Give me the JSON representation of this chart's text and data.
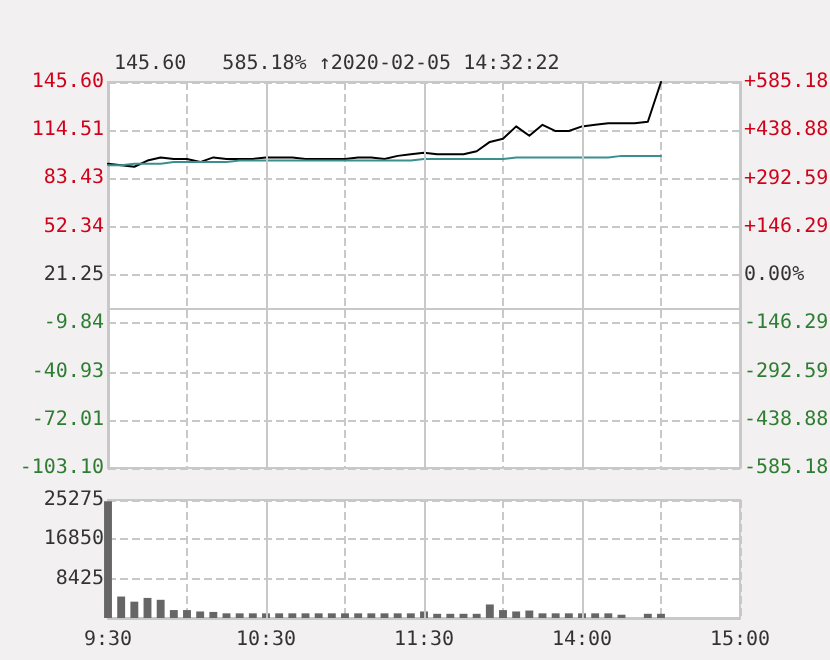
{
  "chart_data": [
    {
      "type": "line",
      "title": "145.60   585.18% ↑2020-02-05 14:32:22",
      "categories": [
        null,
        null,
        null,
        null,
        null,
        null,
        null,
        null,
        null,
        null,
        null,
        null,
        null,
        null,
        null,
        null,
        null,
        null,
        null,
        null,
        null,
        null,
        null,
        null,
        null,
        null,
        null,
        null,
        null,
        null,
        null,
        null,
        null,
        null,
        null,
        null,
        null,
        null,
        null,
        null,
        null,
        null,
        null,
        null,
        null,
        null,
        null,
        null,
        null
      ],
      "series": [
        {
          "color": "#000000",
          "values": [
            93,
            92,
            91,
            95,
            97,
            96,
            96,
            94,
            97,
            96,
            96,
            96,
            97,
            97,
            97,
            96,
            96,
            96,
            96,
            97,
            97,
            96,
            98,
            99,
            100,
            99,
            99,
            99,
            101,
            107,
            109,
            117,
            111,
            118,
            114,
            114,
            117,
            118,
            119,
            119,
            119,
            120,
            145.6,
            null,
            null,
            null,
            null,
            null,
            null
          ]
        },
        {
          "color": "#3a8f8f",
          "values": [
            92,
            92,
            93,
            93,
            93,
            94,
            94,
            94,
            94,
            94,
            95,
            95,
            95,
            95,
            95,
            95,
            95,
            95,
            95,
            95,
            95,
            95,
            95,
            95,
            96,
            96,
            96,
            96,
            96,
            96,
            96,
            97,
            97,
            97,
            97,
            97,
            97,
            97,
            97,
            98,
            98,
            98,
            98,
            null,
            null,
            null,
            null,
            null,
            null
          ]
        }
      ],
      "ylim": [
        -103.1,
        145.6
      ],
      "yticks": [
        {
          "value": -103.1,
          "label": "-103.10"
        },
        -72.01,
        -40.93,
        -9.84,
        21.25,
        52.34,
        83.43,
        114.51,
        {
          "value": 145.6,
          "label": "145.60"
        }
      ],
      "y2lim": [
        -585.18,
        585.18
      ],
      "y2ticks": [
        -585.18,
        -438.88,
        -292.59,
        -146.29,
        {
          "value": 0,
          "label": "0.00%"
        },
        {
          "value": 146.29,
          "label": "+146.29"
        },
        {
          "value": 292.59,
          "label": "+292.59"
        },
        {
          "value": 438.88,
          "label": "+438.88"
        },
        {
          "value": 585.18,
          "label": "+585.18"
        }
      ],
      "grid": true,
      "tick_labels": "y",
      "line_style": "solid"
    },
    {
      "type": "bar",
      "categories": [
        "9:30",
        null,
        null,
        null,
        null,
        null,
        null,
        null,
        null,
        null,
        null,
        null,
        "10:30",
        null,
        null,
        null,
        null,
        null,
        null,
        null,
        null,
        null,
        null,
        null,
        "11:30",
        null,
        null,
        null,
        null,
        null,
        null,
        null,
        null,
        null,
        null,
        null,
        "14:00",
        null,
        null,
        null,
        null,
        null,
        null,
        null,
        null,
        null,
        null,
        null,
        "15:00"
      ],
      "values": [
        25000,
        4600,
        3500,
        4300,
        3900,
        1700,
        1700,
        1400,
        1300,
        1000,
        1000,
        1000,
        1000,
        1000,
        1000,
        1000,
        1000,
        1000,
        1000,
        1000,
        1000,
        1000,
        1000,
        1000,
        1400,
        900,
        900,
        900,
        900,
        2900,
        1700,
        1400,
        1600,
        1000,
        1000,
        1000,
        1000,
        1000,
        1000,
        700,
        null,
        900,
        900,
        null,
        null,
        null,
        null,
        null,
        null
      ],
      "color": "#666666",
      "ylim": [
        0,
        25275
      ],
      "yticks": [
        8425,
        16850,
        25275
      ],
      "grid": true
    }
  ]
}
